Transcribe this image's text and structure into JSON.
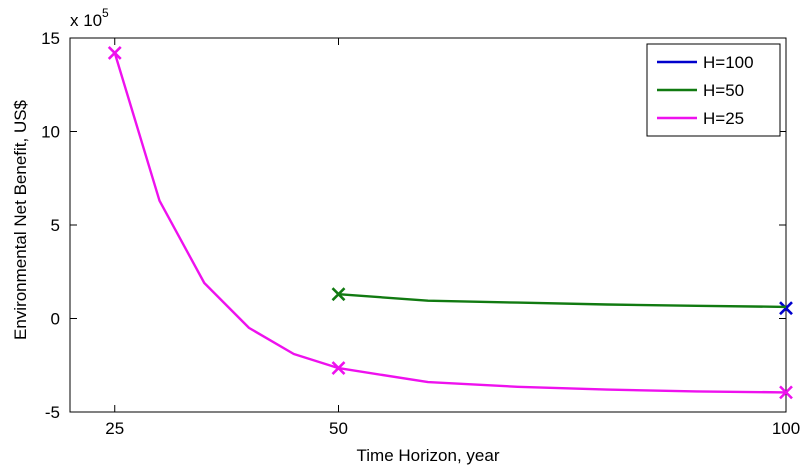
{
  "chart_data": {
    "type": "line",
    "xlabel": "Time Horizon, year",
    "ylabel": "Environmental Net Benefit, US$",
    "y_multiplier": {
      "base": "x 10",
      "exponent": "5"
    },
    "xlim": [
      20,
      100
    ],
    "ylim": [
      -5,
      15
    ],
    "x_ticks": [
      25,
      50,
      100
    ],
    "y_ticks": [
      -5,
      0,
      5,
      10,
      15
    ],
    "grid": false,
    "legend_position": "top-right",
    "series": [
      {
        "name": "H=100",
        "color": "#0000cc",
        "marker": "x",
        "x": [
          100
        ],
        "y": [
          0.55
        ],
        "marker_indices": [
          0
        ]
      },
      {
        "name": "H=50",
        "color": "#117a11",
        "marker": "x",
        "x": [
          50,
          60,
          70,
          80,
          90,
          100
        ],
        "y": [
          1.3,
          0.95,
          0.85,
          0.75,
          0.68,
          0.62
        ],
        "marker_indices": [
          0
        ]
      },
      {
        "name": "H=25",
        "color": "#ee11ee",
        "marker": "x",
        "x": [
          25,
          30,
          35,
          40,
          45,
          50,
          60,
          70,
          80,
          90,
          100
        ],
        "y": [
          14.2,
          6.3,
          1.9,
          -0.5,
          -1.9,
          -2.65,
          -3.4,
          -3.65,
          -3.8,
          -3.9,
          -3.95
        ],
        "marker_indices": [
          0,
          5,
          10
        ]
      }
    ]
  }
}
